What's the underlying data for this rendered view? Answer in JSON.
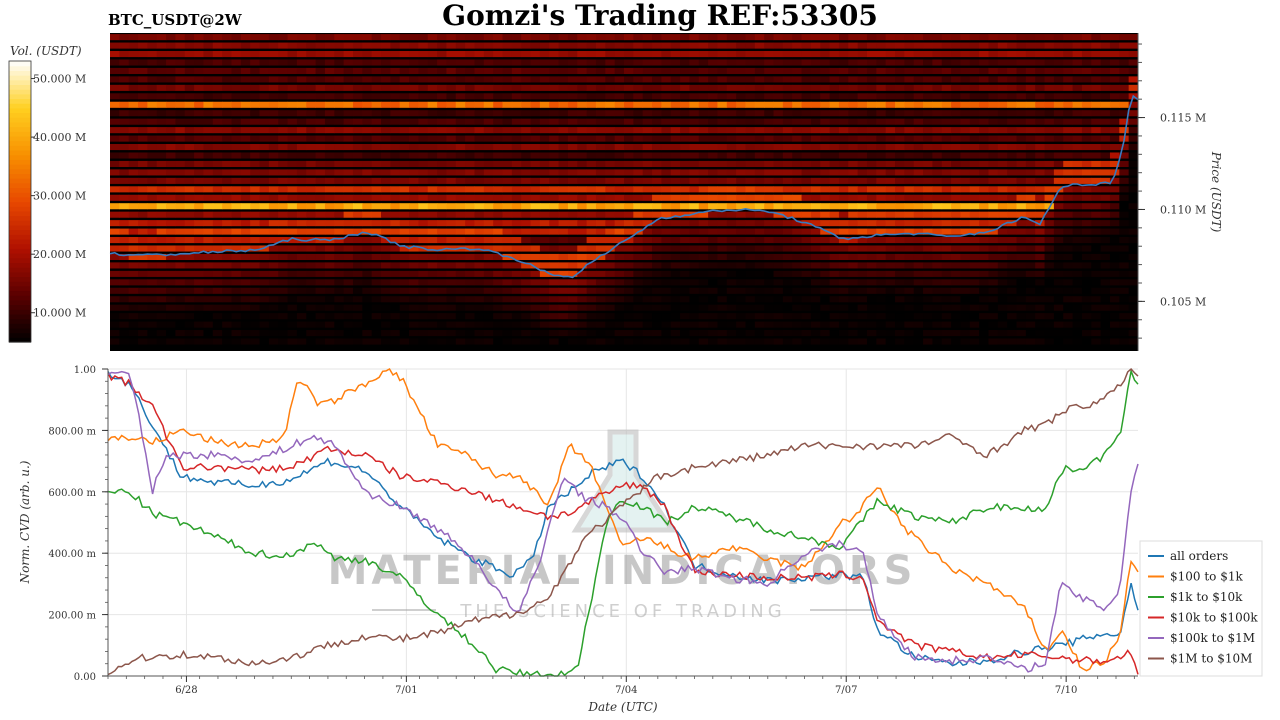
{
  "header": {
    "title": "Gomzi's Trading REF:53305",
    "symbol": "BTC_USDT@2W"
  },
  "watermark": {
    "brand": "MATERIAL INDICATORS",
    "tagline": "THE SCIENCE OF TRADING"
  },
  "chart_data": [
    {
      "type": "heatmap",
      "title": "",
      "colorbar_label": "Vol. (USDT)",
      "colorbar_ticks": [
        "10.000 M",
        "20.000 M",
        "30.000 M",
        "40.000 M",
        "50.000 M"
      ],
      "colorbar_values": [
        10000000,
        20000000,
        30000000,
        40000000,
        50000000
      ],
      "colorbar_range": [
        5000000,
        53000000
      ],
      "colormap": [
        "#000000",
        "#5a0000",
        "#b01000",
        "#e84800",
        "#f89000",
        "#ffd020",
        "#ffffff"
      ],
      "ylabel": "Price (USDT)",
      "y_ticks": [
        "0.105 M",
        "0.110 M",
        "0.115 M"
      ],
      "y_tick_values": [
        105000,
        110000,
        115000
      ],
      "ylim": [
        102300,
        119600
      ],
      "x_range_days": [
        0,
        14.05
      ],
      "price_line_color": "#3a7bbf",
      "price_series": {
        "t_days": [
          0,
          0.5,
          1,
          1.5,
          2,
          2.5,
          3,
          3.5,
          4,
          4.5,
          5,
          5.5,
          6,
          6.3,
          6.5,
          7,
          7.5,
          8,
          8.5,
          9,
          9.5,
          10,
          10.5,
          11,
          11.5,
          12,
          12.5,
          12.8,
          13,
          13.3,
          13.6,
          13.8,
          13.9,
          14.05
        ],
        "price": [
          107600,
          107500,
          107600,
          107700,
          107800,
          108400,
          108300,
          108800,
          108000,
          107800,
          107900,
          107400,
          106500,
          106300,
          106900,
          108200,
          109500,
          109800,
          110000,
          109900,
          109300,
          108400,
          108600,
          108700,
          108500,
          108800,
          109600,
          108900,
          108500,
          108800,
          109200,
          109500,
          109000,
          109100
        ]
      },
      "price_series_tail": {
        "t_days": [
          12.75,
          13.0,
          13.2,
          13.4,
          13.7,
          13.85,
          13.95,
          14.05
        ],
        "price": [
          109600,
          111200,
          111400,
          111300,
          111500,
          113500,
          116200,
          116000
        ]
      },
      "bright_levels": [
        {
          "price": 115500,
          "volume": 36000000
        },
        {
          "price": 110000,
          "volume": 44000000
        },
        {
          "price": 111200,
          "volume": 27000000
        },
        {
          "price": 109000,
          "volume": 24000000
        }
      ]
    },
    {
      "type": "line",
      "title": "",
      "xlabel": "Date (UTC)",
      "ylabel": "Norm. CVD (arb. u.)",
      "x_ticks": [
        "6/28",
        "7/01",
        "7/04",
        "7/07",
        "7/10"
      ],
      "x_tick_values": [
        1.07,
        4.07,
        7.07,
        10.07,
        13.07
      ],
      "xlim": [
        0,
        14.05
      ],
      "y_ticks": [
        "0.00",
        "200.00 m",
        "400.00 m",
        "600.00 m",
        "800.00 m",
        "1.00"
      ],
      "y_tick_values": [
        0,
        0.2,
        0.4,
        0.6,
        0.8,
        1.0
      ],
      "ylim": [
        0,
        1.0
      ],
      "grid": true,
      "legend_position": "right",
      "series": [
        {
          "name": "all orders",
          "color": "#1f77b4",
          "x": [
            0,
            0.3,
            0.6,
            1.0,
            1.5,
            2.0,
            2.5,
            3.0,
            3.5,
            4.0,
            4.5,
            5.0,
            5.5,
            5.8,
            6.0,
            6.3,
            6.6,
            7.0,
            7.3,
            7.6,
            8.0,
            8.5,
            9.0,
            9.5,
            10.0,
            10.3,
            10.5,
            11.0,
            11.5,
            12.0,
            12.5,
            13.0,
            13.3,
            13.6,
            13.8,
            13.95,
            14.05
          ],
          "y": [
            0.99,
            0.95,
            0.82,
            0.65,
            0.63,
            0.62,
            0.64,
            0.7,
            0.67,
            0.55,
            0.45,
            0.38,
            0.33,
            0.38,
            0.55,
            0.6,
            0.66,
            0.7,
            0.65,
            0.55,
            0.36,
            0.33,
            0.31,
            0.32,
            0.33,
            0.32,
            0.15,
            0.06,
            0.04,
            0.05,
            0.08,
            0.1,
            0.12,
            0.14,
            0.13,
            0.3,
            0.22
          ]
        },
        {
          "name": "$100 to $1k",
          "color": "#ff7f0e",
          "x": [
            0,
            0.3,
            0.6,
            1.0,
            1.5,
            2.0,
            2.4,
            2.6,
            2.9,
            3.1,
            3.5,
            3.8,
            4.0,
            4.5,
            4.9,
            5.3,
            5.6,
            6.0,
            6.3,
            6.6,
            7.0,
            7.3,
            7.6,
            8.0,
            8.5,
            9.0,
            9.5,
            10.0,
            10.2,
            10.5,
            10.8,
            11.0,
            11.5,
            12.0,
            12.5,
            12.8,
            13.0,
            13.3,
            13.6,
            13.8,
            13.95,
            14.05
          ],
          "y": [
            0.77,
            0.78,
            0.76,
            0.8,
            0.76,
            0.75,
            0.78,
            0.97,
            0.88,
            0.9,
            0.95,
            1.0,
            0.97,
            0.75,
            0.72,
            0.65,
            0.66,
            0.55,
            0.75,
            0.68,
            0.42,
            0.45,
            0.42,
            0.38,
            0.42,
            0.38,
            0.35,
            0.5,
            0.52,
            0.62,
            0.5,
            0.45,
            0.35,
            0.3,
            0.22,
            0.08,
            0.15,
            0.02,
            0.05,
            0.12,
            0.38,
            0.33
          ]
        },
        {
          "name": "$1k to $10k",
          "color": "#2ca02c",
          "x": [
            0,
            0.3,
            0.6,
            1.0,
            1.5,
            2.0,
            2.5,
            2.8,
            3.1,
            3.5,
            4.0,
            4.5,
            5.0,
            5.3,
            5.6,
            6.0,
            6.4,
            6.8,
            7.0,
            7.3,
            7.6,
            8.0,
            8.5,
            9.0,
            9.5,
            10.0,
            10.2,
            10.5,
            11.0,
            11.5,
            12.0,
            12.5,
            12.8,
            13.0,
            13.3,
            13.6,
            13.8,
            13.95,
            14.05
          ],
          "y": [
            0.6,
            0.6,
            0.53,
            0.5,
            0.45,
            0.4,
            0.39,
            0.44,
            0.38,
            0.38,
            0.32,
            0.2,
            0.1,
            0.02,
            0.01,
            0.0,
            0.02,
            0.5,
            0.58,
            0.55,
            0.5,
            0.55,
            0.52,
            0.48,
            0.45,
            0.42,
            0.48,
            0.57,
            0.52,
            0.5,
            0.55,
            0.55,
            0.54,
            0.67,
            0.68,
            0.72,
            0.78,
            1.0,
            0.95
          ]
        },
        {
          "name": "$10k to $100k",
          "color": "#d62728",
          "x": [
            0,
            0.3,
            0.6,
            1.0,
            1.5,
            2.0,
            2.5,
            3.0,
            3.5,
            4.0,
            4.5,
            5.0,
            5.3,
            5.6,
            6.0,
            6.3,
            6.6,
            7.0,
            7.3,
            7.6,
            8.0,
            8.5,
            9.0,
            9.5,
            10.0,
            10.3,
            10.5,
            11.0,
            11.5,
            12.0,
            12.5,
            13.0,
            13.3,
            13.6,
            13.8,
            13.95,
            14.05
          ],
          "y": [
            0.98,
            0.95,
            0.88,
            0.68,
            0.68,
            0.67,
            0.68,
            0.74,
            0.72,
            0.65,
            0.63,
            0.6,
            0.57,
            0.55,
            0.52,
            0.53,
            0.57,
            0.62,
            0.62,
            0.55,
            0.34,
            0.33,
            0.32,
            0.32,
            0.33,
            0.32,
            0.18,
            0.1,
            0.08,
            0.06,
            0.07,
            0.06,
            0.05,
            0.05,
            0.06,
            0.08,
            0.0
          ]
        },
        {
          "name": "$100k to $1M",
          "color": "#9467bd",
          "x": [
            0,
            0.3,
            0.5,
            0.6,
            0.8,
            1.0,
            1.5,
            2.0,
            2.5,
            2.8,
            3.1,
            3.5,
            4.0,
            4.5,
            5.0,
            5.3,
            5.6,
            5.9,
            6.2,
            6.5,
            6.8,
            7.0,
            7.3,
            7.6,
            8.0,
            8.5,
            9.0,
            9.5,
            10.0,
            10.3,
            10.5,
            11.0,
            11.5,
            12.0,
            12.5,
            12.8,
            13.0,
            13.3,
            13.6,
            13.8,
            13.95,
            14.05
          ],
          "y": [
            0.99,
            0.98,
            0.75,
            0.6,
            0.72,
            0.72,
            0.72,
            0.7,
            0.75,
            0.78,
            0.75,
            0.6,
            0.55,
            0.48,
            0.38,
            0.28,
            0.2,
            0.38,
            0.65,
            0.58,
            0.55,
            0.52,
            0.4,
            0.34,
            0.35,
            0.32,
            0.3,
            0.4,
            0.43,
            0.4,
            0.2,
            0.06,
            0.05,
            0.06,
            0.02,
            0.05,
            0.3,
            0.25,
            0.22,
            0.28,
            0.6,
            0.7
          ]
        },
        {
          "name": "$1M to $10M",
          "color": "#8c564b",
          "x": [
            0,
            0.2,
            0.5,
            1.0,
            1.5,
            2.0,
            2.5,
            3.0,
            3.5,
            4.0,
            4.5,
            5.0,
            5.5,
            6.0,
            6.5,
            7.0,
            7.5,
            8.0,
            8.5,
            9.0,
            9.5,
            10.0,
            10.5,
            11.0,
            11.5,
            12.0,
            12.5,
            12.8,
            13.0,
            13.3,
            13.6,
            13.8,
            13.95,
            14.05
          ],
          "y": [
            0.0,
            0.04,
            0.06,
            0.07,
            0.06,
            0.04,
            0.06,
            0.1,
            0.13,
            0.12,
            0.14,
            0.18,
            0.2,
            0.25,
            0.45,
            0.55,
            0.65,
            0.68,
            0.7,
            0.72,
            0.75,
            0.75,
            0.75,
            0.75,
            0.78,
            0.72,
            0.8,
            0.82,
            0.86,
            0.88,
            0.9,
            0.95,
            1.0,
            0.98
          ]
        }
      ]
    }
  ]
}
